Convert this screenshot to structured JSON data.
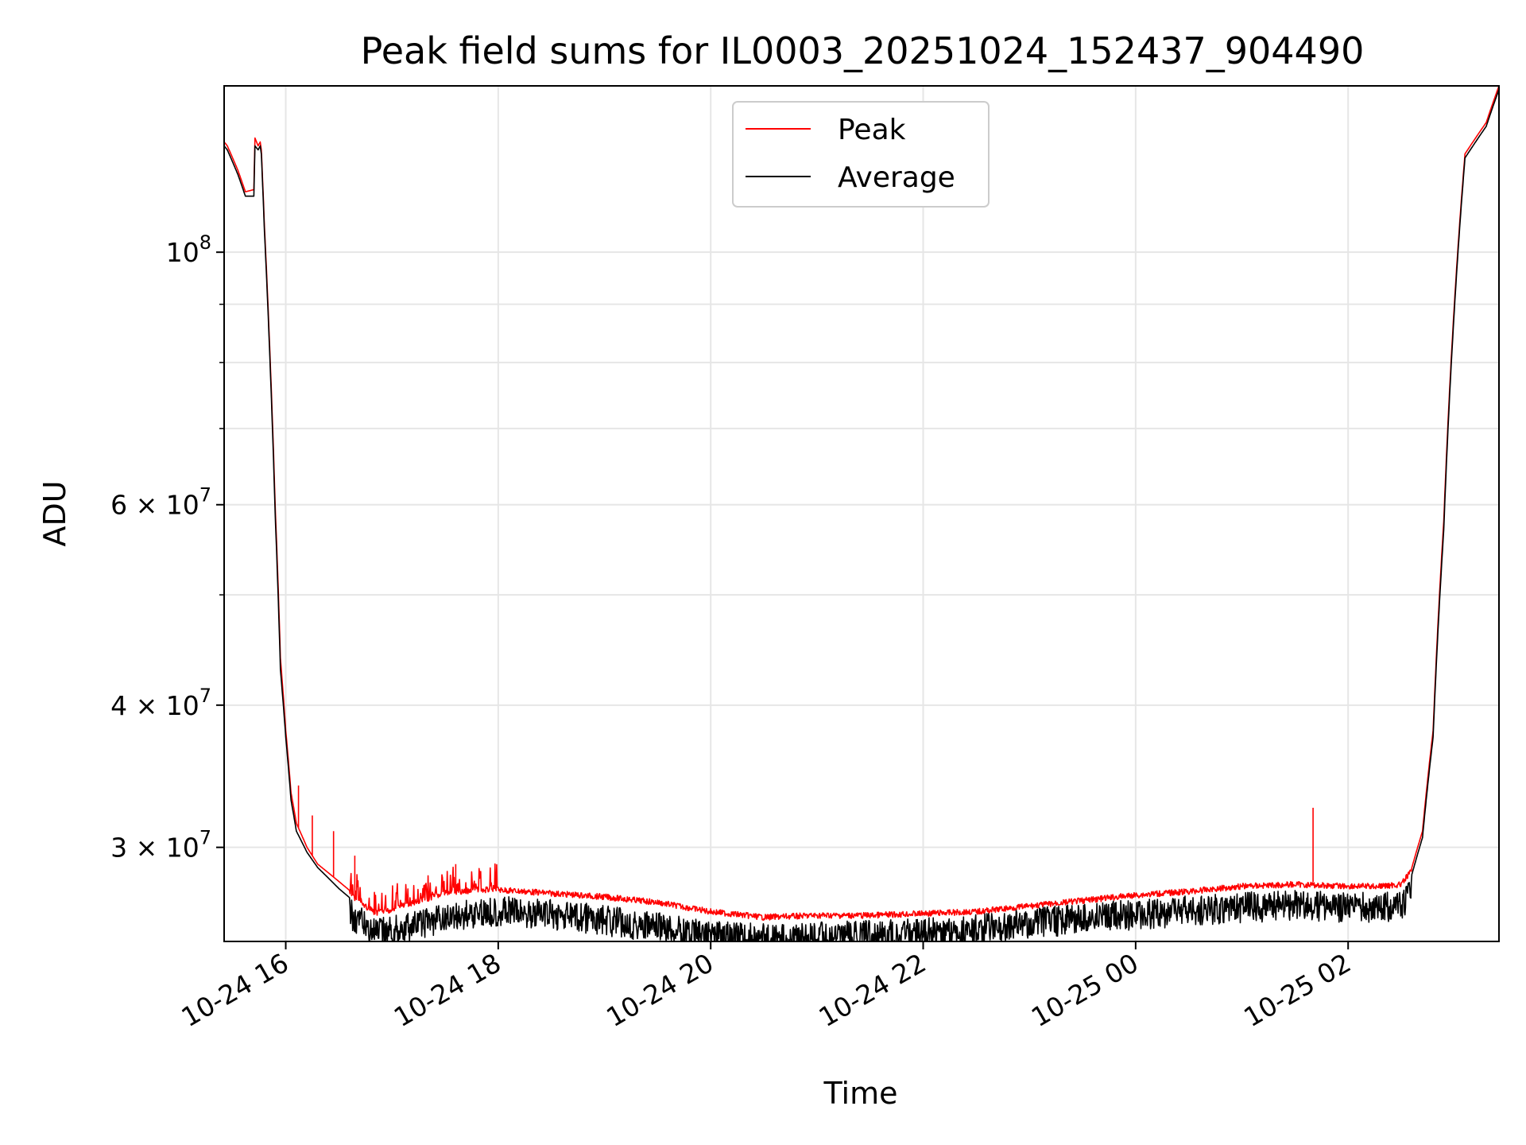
{
  "chart_data": {
    "type": "line",
    "title": "Peak field sums for IL0003_20251024_152437_904490",
    "xlabel": "Time",
    "ylabel": "ADU",
    "y_scale": "log",
    "grid": true,
    "legend_position": "upper-center",
    "xlim_hours": [
      15.42,
      27.42
    ],
    "ylim": [
      24800000,
      140000000
    ],
    "x_ticks": [
      {
        "hour": 16,
        "label": "10-24 16"
      },
      {
        "hour": 18,
        "label": "10-24 18"
      },
      {
        "hour": 20,
        "label": "10-24 20"
      },
      {
        "hour": 22,
        "label": "10-24 22"
      },
      {
        "hour": 24,
        "label": "10-25 00"
      },
      {
        "hour": 26,
        "label": "10-25 02"
      }
    ],
    "y_ticks": [
      {
        "value": 30000000,
        "mantissa": "3",
        "exponent": "7"
      },
      {
        "value": 40000000,
        "mantissa": "4",
        "exponent": "7"
      },
      {
        "value": 60000000,
        "mantissa": "6",
        "exponent": "7"
      },
      {
        "value": 100000000,
        "mantissa": "",
        "exponent": "8"
      }
    ],
    "y_minor_ticks": [
      50000000,
      70000000,
      80000000,
      90000000
    ],
    "series": [
      {
        "name": "Peak",
        "color": "#ff0000",
        "x_hours": [
          15.42,
          15.45,
          15.55,
          15.62,
          15.7,
          15.71,
          15.74,
          15.76,
          15.77,
          15.8,
          15.85,
          15.9,
          15.95,
          16.0,
          16.05,
          16.1,
          16.2,
          16.3,
          16.5,
          16.7,
          16.85,
          17.0,
          17.2,
          17.5,
          17.8,
          18.0,
          18.5,
          19.0,
          19.5,
          20.0,
          20.5,
          21.0,
          21.5,
          22.0,
          22.5,
          23.0,
          23.5,
          24.0,
          24.5,
          25.0,
          25.5,
          26.0,
          26.3,
          26.5,
          26.6,
          26.7,
          26.8,
          26.9,
          27.0,
          27.1,
          27.3,
          27.42
        ],
        "values": [
          125000000,
          124000000,
          118000000,
          113000000,
          113500000,
          126000000,
          124000000,
          125000000,
          123000000,
          105000000,
          82000000,
          60000000,
          44000000,
          38000000,
          33500000,
          31500000,
          30000000,
          29000000,
          28000000,
          27000000,
          26400000,
          26600000,
          27000000,
          27500000,
          27700000,
          27700000,
          27500000,
          27300000,
          27000000,
          26500000,
          26200000,
          26300000,
          26300000,
          26400000,
          26500000,
          26800000,
          27100000,
          27400000,
          27600000,
          27900000,
          28000000,
          27900000,
          27900000,
          28000000,
          28800000,
          31000000,
          38000000,
          58000000,
          90000000,
          122000000,
          130000000,
          140000000
        ]
      },
      {
        "name": "Average",
        "color": "#000000",
        "x_hours": [
          15.42,
          15.45,
          15.55,
          15.62,
          15.7,
          15.71,
          15.74,
          15.76,
          15.77,
          15.8,
          15.85,
          15.9,
          15.95,
          16.0,
          16.05,
          16.1,
          16.2,
          16.3,
          16.5,
          16.7,
          16.85,
          17.0,
          17.2,
          17.5,
          17.8,
          18.0,
          18.5,
          19.0,
          19.5,
          20.0,
          20.5,
          21.0,
          21.5,
          22.0,
          22.5,
          23.0,
          23.5,
          24.0,
          24.5,
          25.0,
          25.5,
          26.0,
          26.3,
          26.5,
          26.6,
          26.7,
          26.8,
          26.9,
          27.0,
          27.1,
          27.3,
          27.42
        ],
        "values": [
          124000000,
          123000000,
          117000000,
          112000000,
          112000000,
          124000000,
          123000000,
          124000000,
          122000000,
          104000000,
          81000000,
          59000000,
          43000000,
          37500000,
          33000000,
          31000000,
          29700000,
          28800000,
          27600000,
          26600000,
          26000000,
          26100000,
          26400000,
          26800000,
          27100000,
          27200000,
          27000000,
          26700000,
          26300000,
          25900000,
          25700000,
          25800000,
          25900000,
          26000000,
          26200000,
          26500000,
          26800000,
          27000000,
          27200000,
          27400000,
          27500000,
          27400000,
          27400000,
          27500000,
          28400000,
          30600000,
          37500000,
          57000000,
          89000000,
          121000000,
          129000000,
          139000000
        ]
      }
    ],
    "spikes": [
      {
        "hour": 16.12,
        "value": 34000000,
        "series": "Peak"
      },
      {
        "hour": 16.25,
        "value": 32000000,
        "series": "Peak"
      },
      {
        "hour": 16.45,
        "value": 31000000,
        "series": "Peak"
      },
      {
        "hour": 16.65,
        "value": 29500000,
        "series": "Peak"
      },
      {
        "hour": 17.6,
        "value": 29000000,
        "series": "Peak"
      },
      {
        "hour": 25.67,
        "value": 32500000,
        "series": "Peak"
      }
    ]
  }
}
